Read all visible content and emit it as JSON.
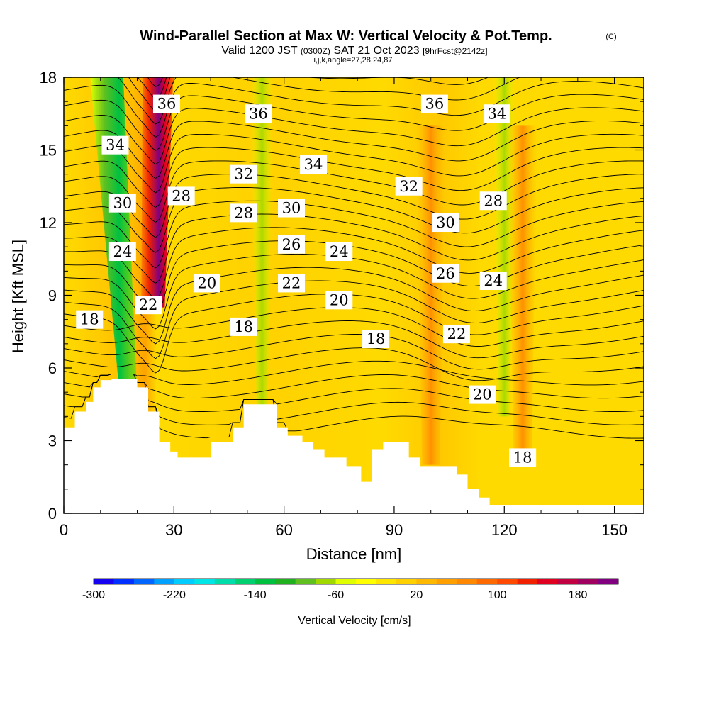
{
  "chart_data": {
    "type": "heatmap",
    "title": "Wind-Parallel Section at Max W: Vertical Velocity & Pot.Temp.",
    "title_mark": "(C)",
    "subtitle": {
      "prefix": "Valid 1200 JST",
      "utc": "(0300Z)",
      "date": "SAT 21 Oct 2023",
      "forecast": "[9hrFcst@2142z]"
    },
    "subtitle2": "i,j,k,angle=27,28,24,87",
    "xlabel": "Distance [nm]",
    "ylabel": "Height [Kft MSL]",
    "xlim": [
      0,
      158
    ],
    "ylim": [
      0,
      18
    ],
    "x_ticks": [
      0,
      30,
      60,
      90,
      120,
      150
    ],
    "y_ticks": [
      0,
      3,
      6,
      9,
      12,
      15,
      18
    ],
    "colorbar": {
      "label": "Vertical Velocity [cm/s]",
      "min": -300,
      "max": 220,
      "tick_labels": [
        "-300",
        "-220",
        "-140",
        "-60",
        "20",
        "100",
        "180"
      ],
      "colors": [
        "#1500f0",
        "#0030ff",
        "#0066ff",
        "#00a0ff",
        "#00ccff",
        "#00e6e6",
        "#00dcaa",
        "#00d070",
        "#00c040",
        "#20b020",
        "#60c020",
        "#a0d800",
        "#e0ff00",
        "#ffff00",
        "#ffe600",
        "#ffd000",
        "#ffb800",
        "#ffa000",
        "#ff8800",
        "#ff6a00",
        "#ff4800",
        "#f02000",
        "#e00020",
        "#c00040",
        "#a00060",
        "#800080"
      ]
    },
    "terrain": [
      [
        0,
        3.55
      ],
      [
        3,
        3.55
      ],
      [
        3,
        4.2
      ],
      [
        6,
        4.2
      ],
      [
        6,
        4.6
      ],
      [
        8,
        4.6
      ],
      [
        8,
        5.2
      ],
      [
        10,
        5.2
      ],
      [
        10,
        5.5
      ],
      [
        13,
        5.5
      ],
      [
        13,
        5.55
      ],
      [
        20,
        5.55
      ],
      [
        20,
        5.2
      ],
      [
        23,
        5.2
      ],
      [
        23,
        4.2
      ],
      [
        26,
        4.2
      ],
      [
        26,
        2.95
      ],
      [
        29,
        2.95
      ],
      [
        29,
        2.55
      ],
      [
        31,
        2.55
      ],
      [
        31,
        2.3
      ],
      [
        40,
        2.3
      ],
      [
        40,
        2.95
      ],
      [
        46,
        2.95
      ],
      [
        46,
        3.55
      ],
      [
        49,
        3.55
      ],
      [
        49,
        4.5
      ],
      [
        58,
        4.5
      ],
      [
        58,
        3.55
      ],
      [
        61,
        3.55
      ],
      [
        61,
        3.2
      ],
      [
        65,
        3.2
      ],
      [
        65,
        2.95
      ],
      [
        68,
        2.95
      ],
      [
        68,
        2.65
      ],
      [
        71,
        2.65
      ],
      [
        71,
        2.3
      ],
      [
        77,
        2.3
      ],
      [
        77,
        1.95
      ],
      [
        81,
        1.95
      ],
      [
        81,
        1.3
      ],
      [
        84,
        1.3
      ],
      [
        84,
        2.65
      ],
      [
        87,
        2.65
      ],
      [
        87,
        2.95
      ],
      [
        94,
        2.95
      ],
      [
        94,
        2.3
      ],
      [
        97,
        2.3
      ],
      [
        97,
        1.95
      ],
      [
        107,
        1.95
      ],
      [
        107,
        1.6
      ],
      [
        110,
        1.6
      ],
      [
        110,
        1.0
      ],
      [
        113,
        1.0
      ],
      [
        113,
        0.65
      ],
      [
        116,
        0.65
      ],
      [
        116,
        0.35
      ],
      [
        158,
        0.35
      ]
    ],
    "isentropes": {
      "interval_K": 1,
      "range_K": [
        14,
        36
      ],
      "labeled": [
        {
          "value": "36",
          "x": 28,
          "y": 16.9
        },
        {
          "value": "36",
          "x": 53,
          "y": 16.5
        },
        {
          "value": "36",
          "x": 101,
          "y": 16.9
        },
        {
          "value": "34",
          "x": 14,
          "y": 15.2
        },
        {
          "value": "34",
          "x": 68,
          "y": 14.4
        },
        {
          "value": "34",
          "x": 118,
          "y": 16.5
        },
        {
          "value": "32",
          "x": 49,
          "y": 14.0
        },
        {
          "value": "32",
          "x": 94,
          "y": 13.5
        },
        {
          "value": "30",
          "x": 16,
          "y": 12.8
        },
        {
          "value": "30",
          "x": 62,
          "y": 12.6
        },
        {
          "value": "30",
          "x": 104,
          "y": 12.0
        },
        {
          "value": "28",
          "x": 32,
          "y": 13.1
        },
        {
          "value": "28",
          "x": 49,
          "y": 12.4
        },
        {
          "value": "28",
          "x": 117,
          "y": 12.9
        },
        {
          "value": "26",
          "x": 62,
          "y": 11.1
        },
        {
          "value": "26",
          "x": 104,
          "y": 9.9
        },
        {
          "value": "24",
          "x": 16,
          "y": 10.8
        },
        {
          "value": "24",
          "x": 75,
          "y": 10.8
        },
        {
          "value": "24",
          "x": 117,
          "y": 9.6
        },
        {
          "value": "22",
          "x": 23,
          "y": 8.6
        },
        {
          "value": "22",
          "x": 62,
          "y": 9.5
        },
        {
          "value": "22",
          "x": 107,
          "y": 7.4
        },
        {
          "value": "20",
          "x": 39,
          "y": 9.5
        },
        {
          "value": "20",
          "x": 75,
          "y": 8.8
        },
        {
          "value": "20",
          "x": 114,
          "y": 4.9
        },
        {
          "value": "18",
          "x": 7,
          "y": 8.0
        },
        {
          "value": "18",
          "x": 49,
          "y": 7.7
        },
        {
          "value": "18",
          "x": 85,
          "y": 7.2
        },
        {
          "value": "18",
          "x": 125,
          "y": 2.3
        }
      ]
    },
    "updrafts": [
      {
        "x": 27,
        "peak_cm_s": 210
      },
      {
        "x": 100,
        "peak_cm_s": 80
      },
      {
        "x": 125,
        "peak_cm_s": 70
      }
    ],
    "downdrafts": [
      {
        "x": 18,
        "peak_cm_s": -140
      },
      {
        "x": 54,
        "peak_cm_s": -90
      },
      {
        "x": 120,
        "peak_cm_s": -70
      }
    ]
  }
}
